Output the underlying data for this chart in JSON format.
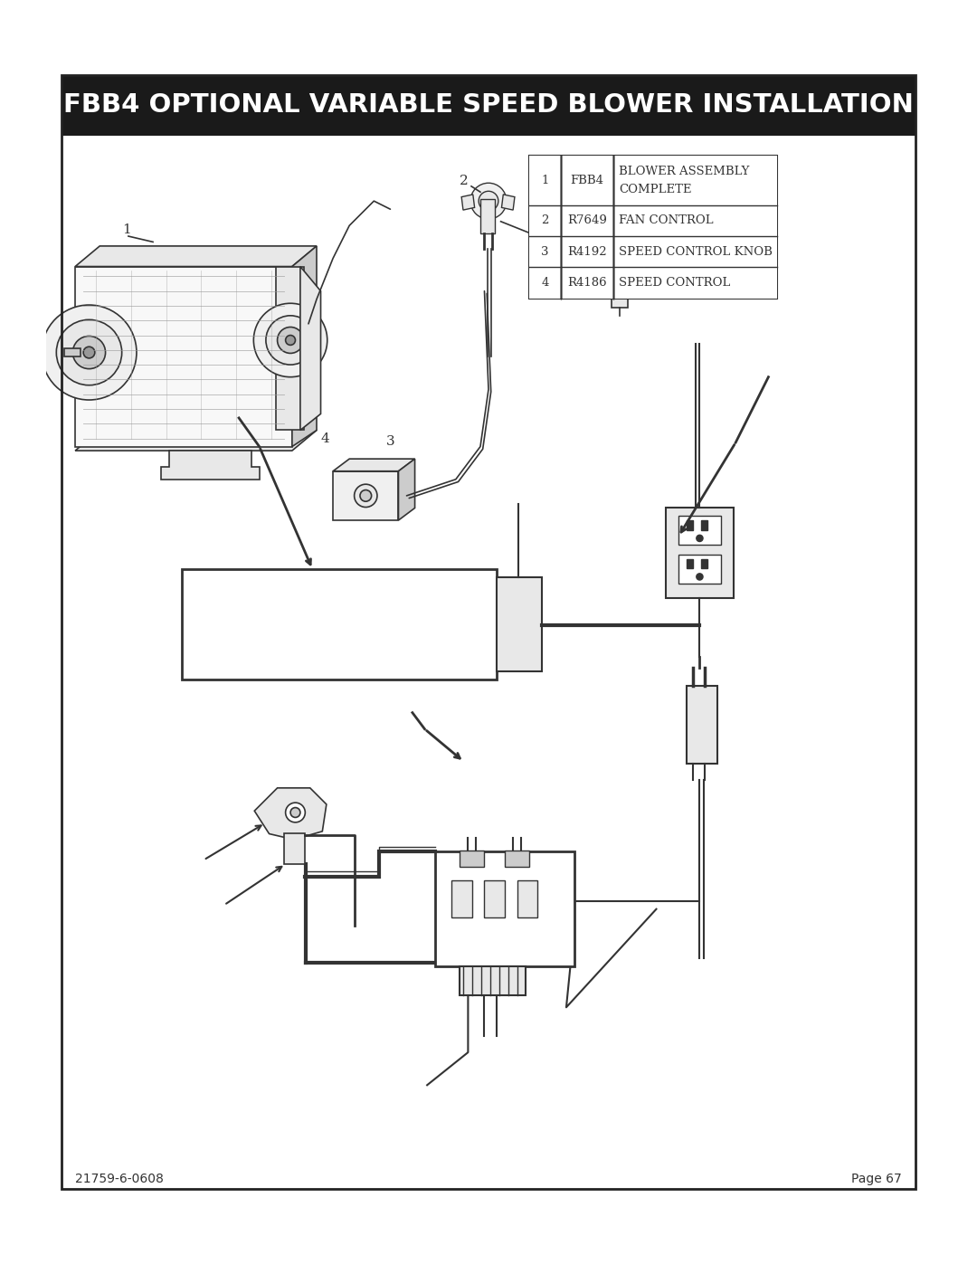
{
  "title": "FBB4 OPTIONAL VARIABLE SPEED BLOWER INSTALLATION",
  "title_bg": "#1a1a1a",
  "title_color": "#ffffff",
  "title_fontsize": 21,
  "page_bg": "#ffffff",
  "border_color": "#222222",
  "footer_left": "21759-6-0608",
  "footer_right": "Page 67",
  "table_data": [
    [
      "1",
      "FBB4",
      "BLOWER ASSEMBLY\nCOMPLETE"
    ],
    [
      "2",
      "R7649",
      "FAN CONTROL"
    ],
    [
      "3",
      "R4192",
      "SPEED CONTROL KNOB"
    ],
    [
      "4",
      "R4186",
      "SPEED CONTROL"
    ]
  ],
  "line_color": "#333333",
  "draw_color": "#444444",
  "light_gray": "#e8e8e8",
  "mid_gray": "#cccccc",
  "dark_gray": "#999999"
}
